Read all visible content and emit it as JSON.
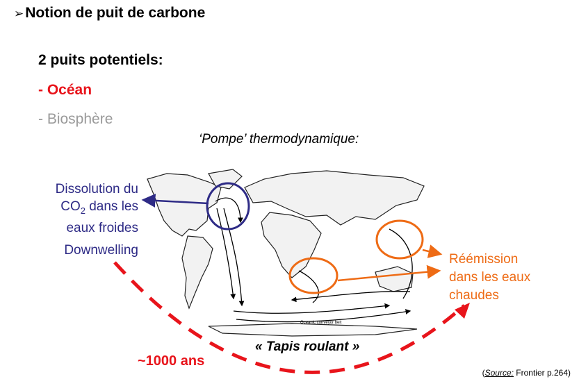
{
  "slide": {
    "bullet_glyph": "➢",
    "title": "Notion de puit de carbone",
    "subtitle": "2 puits potentiels:",
    "item_ocean": "- Océan",
    "item_biosphere": "- Biosphère",
    "pompe_label": "‘Pompe’ thermodynamique:",
    "dissolution_lines": [
      "Dissolution du",
      "CO",
      "2",
      " dans les",
      "eaux froides"
    ],
    "downwelling": "Downwelling",
    "reemission_lines": [
      "Réémission",
      "dans les eaux",
      "chaudes"
    ],
    "map_caption": "Oceanic conveyor belt",
    "tapis": "« Tapis roulant »",
    "duration": "~1000 ans",
    "source_open": "(",
    "source_word": "Source:",
    "source_ref": " Frontier p.264)"
  },
  "colors": {
    "blue": "#2e2b86",
    "orange": "#ee6b15",
    "red": "#e8141b",
    "grey": "#9a9a9a"
  }
}
